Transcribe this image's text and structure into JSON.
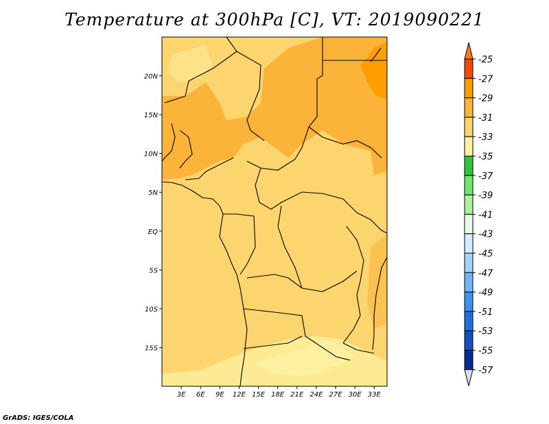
{
  "title": "Temperature at 300hPa [C], VT: 2019090221",
  "credit": "GrADS: IGES/COLA",
  "map": {
    "lon_range": [
      0,
      35
    ],
    "lat_range": [
      -20,
      25
    ],
    "lon_ticks": [
      "3E",
      "6E",
      "9E",
      "12E",
      "15E",
      "18E",
      "21E",
      "24E",
      "27E",
      "30E",
      "33E"
    ],
    "lat_ticks": [
      "20N",
      "15N",
      "10N",
      "5N",
      "EQ",
      "5S",
      "10S",
      "15S"
    ]
  },
  "colorbar": {
    "labels": [
      "-25",
      "-27",
      "-29",
      "-31",
      "-33",
      "-35",
      "-37",
      "-39",
      "-41",
      "-43",
      "-45",
      "-47",
      "-49",
      "-51",
      "-53",
      "-55",
      "-57"
    ],
    "colors": [
      "#ff7a10",
      "#f04b08",
      "#ff9e00",
      "#fbb33a",
      "#fcd56e",
      "#fdf0a0",
      "#32c23c",
      "#6ee76a",
      "#a8f2a0",
      "#e6fde6",
      "#d4ecfd",
      "#a4d2fb",
      "#73b4f5",
      "#3b93ec",
      "#1f6fe0",
      "#124fbf",
      "#0a2a94",
      "#0c0c6e",
      "#dcdcf8"
    ]
  }
}
